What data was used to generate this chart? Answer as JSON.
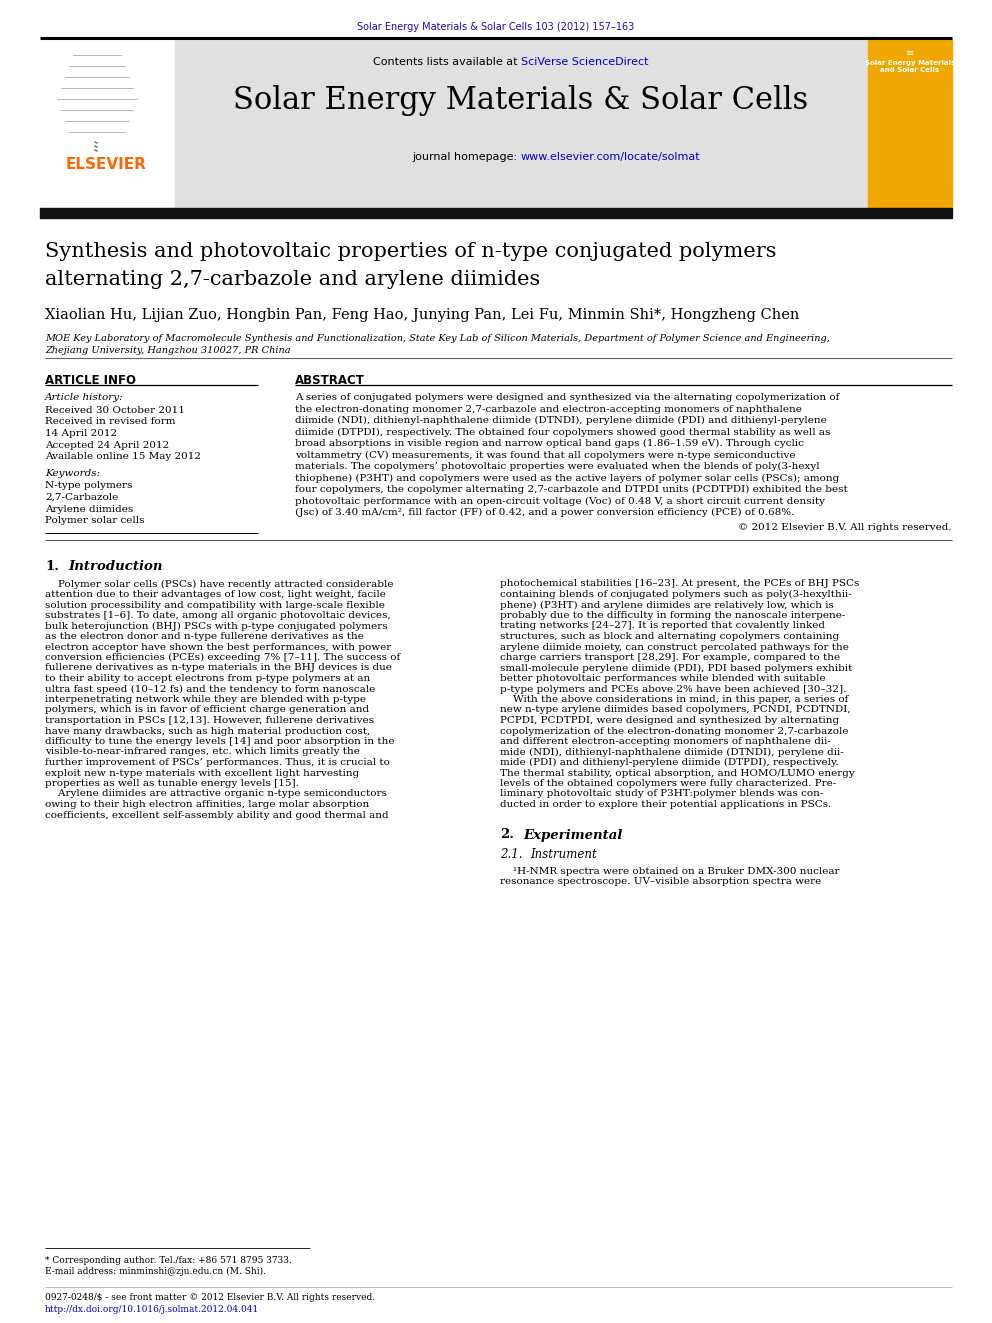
{
  "journal_ref": "Solar Energy Materials & Solar Cells 103 (2012) 157–163",
  "journal_ref_color": "#1a0dab",
  "header_bg_color": "#E0E0E0",
  "journal_title": "Solar Energy Materials & Solar Cells",
  "contents_text": "Contents lists available at ",
  "sciverse_text": "SciVerse ScienceDirect",
  "homepage_prefix": "journal homepage: ",
  "homepage_url": "www.elsevier.com/locate/solmat",
  "paper_title_line1": "Synthesis and photovoltaic properties of n-type conjugated polymers",
  "paper_title_line2": "alternating 2,7-carbazole and arylene diimides",
  "authors": "Xiaolian Hu, Lijian Zuo, Hongbin Pan, Feng Hao, Junying Pan, Lei Fu, Minmin Shi*, Hongzheng Chen",
  "affiliation_line1": "MOE Key Laboratory of Macromolecule Synthesis and Functionalization, State Key Lab of Silicon Materials, Department of Polymer Science and Engineering,",
  "affiliation_line2": "Zhejiang University, Hangzhou 310027, PR China",
  "article_info_header": "ARTICLE INFO",
  "abstract_header": "ABSTRACT",
  "article_history_label": "Article history:",
  "history_lines": [
    "Received 30 October 2011",
    "Received in revised form",
    "14 April 2012",
    "Accepted 24 April 2012",
    "Available online 15 May 2012"
  ],
  "keywords_label": "Keywords:",
  "keywords": [
    "N-type polymers",
    "2,7-Carbazole",
    "Arylene diimides",
    "Polymer solar cells"
  ],
  "abstract_lines": [
    "A series of conjugated polymers were designed and synthesized via the alternating copolymerization of",
    "the electron-donating monomer 2,7-carbazole and electron-accepting monomers of naphthalene",
    "diimide (NDI), dithienyl-naphthalene diimide (DTNDI), perylene diimide (PDI) and dithienyl-perylene",
    "diimide (DTPDI), respectively. The obtained four copolymers showed good thermal stability as well as",
    "broad absorptions in visible region and narrow optical band gaps (1.86–1.59 eV). Through cyclic",
    "voltammetry (CV) measurements, it was found that all copolymers were n-type semiconductive",
    "materials. The copolymers’ photovoltaic properties were evaluated when the blends of poly(3-hexyl",
    "thiophene) (P3HT) and copolymers were used as the active layers of polymer solar cells (PSCs); among",
    "four copolymers, the copolymer alternating 2,7-carbazole and DTPDI units (PCDTPDI) exhibited the best",
    "photovoltaic performance with an open-circuit voltage (Voc) of 0.48 V, a short circuit current density",
    "(Jsc) of 3.40 mA/cm², fill factor (FF) of 0.42, and a power conversion efficiency (PCE) of 0.68%."
  ],
  "copyright": "© 2012 Elsevier B.V. All rights reserved.",
  "intro_number": "1.",
  "intro_title": "Introduction",
  "intro_col1_lines": [
    "    Polymer solar cells (PSCs) have recently attracted considerable",
    "attention due to their advantages of low cost, light weight, facile",
    "solution processibility and compatibility with large-scale flexible",
    "substrates [1–6]. To date, among all organic photovoltaic devices,",
    "bulk heterojunction (BHJ) PSCs with p-type conjugated polymers",
    "as the electron donor and n-type fullerene derivatives as the",
    "electron acceptor have shown the best performances, with power",
    "conversion efficiencies (PCEs) exceeding 7% [7–11]. The success of",
    "fullerene derivatives as n-type materials in the BHJ devices is due",
    "to their ability to accept electrons from p-type polymers at an",
    "ultra fast speed (10–12 fs) and the tendency to form nanoscale",
    "interpenetrating network while they are blended with p-type",
    "polymers, which is in favor of efficient charge generation and",
    "transportation in PSCs [12,13]. However, fullerene derivatives",
    "have many drawbacks, such as high material production cost,",
    "difficulty to tune the energy levels [14] and poor absorption in the",
    "visible-to-near-infrared ranges, etc. which limits greatly the",
    "further improvement of PSCs’ performances. Thus, it is crucial to",
    "exploit new n-type materials with excellent light harvesting",
    "properties as well as tunable energy levels [15].",
    "    Arylene diimides are attractive organic n-type semiconductors",
    "owing to their high electron affinities, large molar absorption",
    "coefficients, excellent self-assembly ability and good thermal and"
  ],
  "intro_col2_lines": [
    "photochemical stabilities [16–23]. At present, the PCEs of BHJ PSCs",
    "containing blends of conjugated polymers such as poly(3-hexylthii-",
    "phene) (P3HT) and arylene diimides are relatively low, which is",
    "probably due to the difficulty in forming the nanoscale interpene-",
    "trating networks [24–27]. It is reported that covalently linked",
    "structures, such as block and alternating copolymers containing",
    "arylene diimide moiety, can construct percolated pathways for the",
    "charge carriers transport [28,29]. For example, compared to the",
    "small-molecule perylene diimide (PDI), PDI based polymers exhibit",
    "better photovoltaic performances while blended with suitable",
    "p-type polymers and PCEs above 2% have been achieved [30–32].",
    "    With the above considerations in mind, in this paper, a series of",
    "new n-type arylene diimides based copolymers, PCNDI, PCDTNDI,",
    "PCPDI, PCDTPDI, were designed and synthesized by alternating",
    "copolymerization of the electron-donating monomer 2,7-carbazole",
    "and different electron-accepting monomers of naphthalene dii-",
    "mide (NDI), dithienyl-naphthalene diimide (DTNDI), perylene dii-",
    "mide (PDI) and dithienyl-perylene diimide (DTPDI), respectively.",
    "The thermal stability, optical absorption, and HOMO/LUMO energy",
    "levels of the obtained copolymers were fully characterized. Pre-",
    "liminary photovoltaic study of P3HT:polymer blends was con-",
    "ducted in order to explore their potential applications in PSCs."
  ],
  "exp_number": "2.",
  "exp_title": "Experimental",
  "exp_sub_number": "2.1.",
  "exp_sub_title": "Instrument",
  "exp_body_lines": [
    "    ¹H-NMR spectra were obtained on a Bruker DMX-300 nuclear",
    "resonance spectroscope. UV–visible absorption spectra were"
  ],
  "footnote1": "* Corresponding author. Tel./fax: +86 571 8795 3733.",
  "footnote2": "E-mail address: minminshi@zju.edu.cn (M. Shi).",
  "footer1": "0927-0248/$ - see front matter © 2012 Elsevier B.V. All rights reserved.",
  "footer2": "http://dx.doi.org/10.1016/j.solmat.2012.04.041",
  "link_color": "#0000CD",
  "elsevier_orange": "#FF6600",
  "dark_bar_color": "#111111"
}
